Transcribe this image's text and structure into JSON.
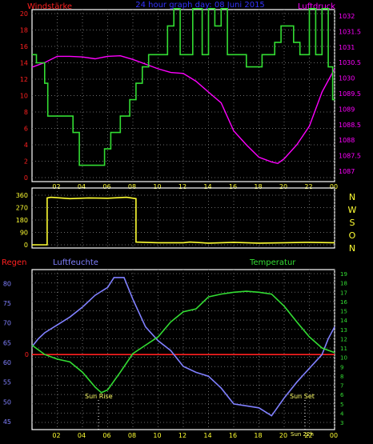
{
  "colors": {
    "background": "#000000",
    "panel_border": "#ffffff",
    "grid": "#6a6a6a",
    "windstaerke": "#ff2020",
    "luftdruck": "#ff00ff",
    "wind_speed_line": "#33dd33",
    "wind_dir_line": "#ffff33",
    "nwson": "#ffff33",
    "regen": "#ff2020",
    "luftfeuchte": "#8080ff",
    "temperatur": "#33dd33",
    "date_title": "#3333ff",
    "time_labels": "#ffff33",
    "sun_labels": "#ffff66",
    "zero_line": "#ff2020"
  },
  "header": {
    "left_label": "Windstärke",
    "center_label": "24 hour graph day: 08 Juni 2015",
    "right_label": "Luftdruck"
  },
  "direction_letters": [
    "N",
    "W",
    "S",
    "O",
    "N"
  ],
  "bottom_labels": {
    "regen": "Regen",
    "luftfeuchte": "Luftfeuchte",
    "temperatur": "Temperatur"
  },
  "sun_labels": {
    "rise": "Sun Rise",
    "set": "Sun Set",
    "now": "Sun 22h"
  },
  "chart_data": [
    {
      "type": "line",
      "name": "wind-pressure",
      "x_ticks": [
        "02",
        "04",
        "06",
        "08",
        "10",
        "12",
        "14",
        "16",
        "18",
        "20",
        "22",
        "00"
      ],
      "y_left_ticks": [
        "0",
        "2",
        "4",
        "6",
        "8",
        "10",
        "12",
        "14",
        "16",
        "18",
        "20"
      ],
      "y_right_ticks": [
        "1087",
        "1087.5",
        "1088",
        "1088.5",
        "1089",
        "1089.5",
        "1030",
        "1030.5",
        "1031",
        "1031.5",
        "1032"
      ],
      "y_left_range": [
        0,
        20
      ],
      "y_right_range": [
        1086.5,
        1032
      ],
      "series": [
        {
          "name": "Windstärke",
          "axis": "left",
          "points": [
            [
              0,
              15
            ],
            [
              0.35,
              15
            ],
            [
              0.35,
              14
            ],
            [
              1,
              14
            ],
            [
              1,
              11.5
            ],
            [
              1.25,
              11.5
            ],
            [
              1.25,
              7.5
            ],
            [
              3.25,
              7.5
            ],
            [
              3.25,
              5.5
            ],
            [
              3.75,
              5.5
            ],
            [
              3.75,
              1.5
            ],
            [
              5.75,
              1.5
            ],
            [
              5.75,
              3.5
            ],
            [
              6.25,
              3.5
            ],
            [
              6.25,
              5.5
            ],
            [
              7,
              5.5
            ],
            [
              7,
              7.5
            ],
            [
              7.75,
              7.5
            ],
            [
              7.75,
              9.5
            ],
            [
              8.25,
              9.5
            ],
            [
              8.25,
              11.5
            ],
            [
              8.75,
              11.5
            ],
            [
              8.75,
              13.5
            ],
            [
              9.25,
              13.5
            ],
            [
              9.25,
              15
            ],
            [
              10.75,
              15
            ],
            [
              10.75,
              18.5
            ],
            [
              11.25,
              18.5
            ],
            [
              11.25,
              21
            ],
            [
              11.75,
              21
            ],
            [
              11.75,
              15
            ],
            [
              12.75,
              15
            ],
            [
              12.75,
              21
            ],
            [
              13.5,
              21
            ],
            [
              13.5,
              15
            ],
            [
              14,
              15
            ],
            [
              14,
              21
            ],
            [
              14.5,
              21
            ],
            [
              14.5,
              18.5
            ],
            [
              15,
              18.5
            ],
            [
              15,
              21
            ],
            [
              15.5,
              21
            ],
            [
              15.5,
              15
            ],
            [
              17,
              15
            ],
            [
              17,
              13.5
            ],
            [
              18.25,
              13.5
            ],
            [
              18.25,
              15
            ],
            [
              19.25,
              15
            ],
            [
              19.25,
              16.5
            ],
            [
              19.75,
              16.5
            ],
            [
              19.75,
              18.5
            ],
            [
              20.75,
              18.5
            ],
            [
              20.75,
              16.5
            ],
            [
              21.25,
              16.5
            ],
            [
              21.25,
              15
            ],
            [
              22,
              15
            ],
            [
              22,
              21
            ],
            [
              22.5,
              21
            ],
            [
              22.5,
              15
            ],
            [
              23,
              15
            ],
            [
              23,
              21
            ],
            [
              23.5,
              21
            ],
            [
              23.5,
              13.5
            ],
            [
              23.85,
              13.5
            ],
            [
              23.85,
              9.5
            ],
            [
              24,
              9.5
            ]
          ]
        },
        {
          "name": "Luftdruck",
          "axis": "right",
          "points": [
            [
              0,
              1030.35
            ],
            [
              1,
              1030.5
            ],
            [
              2,
              1030.7
            ],
            [
              3,
              1030.7
            ],
            [
              4,
              1030.68
            ],
            [
              5,
              1030.62
            ],
            [
              6,
              1030.7
            ],
            [
              7,
              1030.72
            ],
            [
              8,
              1030.6
            ],
            [
              9,
              1030.45
            ],
            [
              10,
              1030.3
            ],
            [
              11,
              1030.18
            ],
            [
              12,
              1030.15
            ],
            [
              13,
              1029.9
            ],
            [
              14,
              1029.55
            ],
            [
              15,
              1029.2
            ],
            [
              16,
              1028.8
            ],
            [
              17,
              1028.35
            ],
            [
              18,
              1027.95
            ],
            [
              19,
              1027.8
            ],
            [
              19.5,
              1027.75
            ],
            [
              20,
              1027.9
            ],
            [
              21,
              1028.35
            ],
            [
              22,
              1028.95
            ],
            [
              23,
              1029.55
            ],
            [
              24,
              1030.3
            ]
          ]
        }
      ]
    },
    {
      "type": "line",
      "name": "wind-direction",
      "y_ticks": [
        "0",
        "90",
        "180",
        "270",
        "360"
      ],
      "y_range": [
        0,
        360
      ],
      "series": [
        {
          "name": "Windrichtung",
          "points": [
            [
              0,
              0
            ],
            [
              1.2,
              0
            ],
            [
              1.2,
              340
            ],
            [
              1.5,
              345
            ],
            [
              3,
              335
            ],
            [
              4.5,
              340
            ],
            [
              6,
              338
            ],
            [
              7.5,
              345
            ],
            [
              8.25,
              335
            ],
            [
              8.25,
              20
            ],
            [
              10,
              15
            ],
            [
              12,
              15
            ],
            [
              12.5,
              20
            ],
            [
              14,
              12
            ],
            [
              16,
              18
            ],
            [
              18,
              12
            ],
            [
              20,
              15
            ],
            [
              22,
              18
            ],
            [
              24,
              15
            ]
          ]
        }
      ]
    },
    {
      "type": "line",
      "name": "humidity-temperature",
      "y_left_ticks": [
        "45",
        "50",
        "55",
        "60",
        "65",
        "70",
        "75",
        "80"
      ],
      "y_left_range": [
        44,
        82.5
      ],
      "y_right_ticks": [
        "3",
        "4",
        "5",
        "6",
        "7",
        "8",
        "9",
        "10",
        "11",
        "12",
        "13",
        "14",
        "15",
        "16",
        "17",
        "18",
        "19"
      ],
      "y_right_range": [
        3,
        19
      ],
      "regen_tick": "0",
      "series": [
        {
          "name": "Luftfeuchte",
          "axis": "left",
          "points": [
            [
              0,
              64
            ],
            [
              0.5,
              66
            ],
            [
              1,
              67.5
            ],
            [
              2,
              69.5
            ],
            [
              3,
              71.5
            ],
            [
              4,
              74
            ],
            [
              5,
              77
            ],
            [
              6,
              79
            ],
            [
              6.5,
              81.5
            ],
            [
              7.3,
              81.5
            ],
            [
              8,
              76
            ],
            [
              9,
              69
            ],
            [
              10,
              65.5
            ],
            [
              11,
              63
            ],
            [
              12,
              59
            ],
            [
              13,
              57.5
            ],
            [
              14,
              56.5
            ],
            [
              15,
              53.5
            ],
            [
              16,
              49.5
            ],
            [
              17,
              49
            ],
            [
              18,
              48.5
            ],
            [
              19,
              46.5
            ],
            [
              20,
              51
            ],
            [
              21,
              55
            ],
            [
              22,
              58.5
            ],
            [
              23,
              62
            ],
            [
              23.5,
              66
            ],
            [
              24,
              69
            ]
          ]
        },
        {
          "name": "Temperatur",
          "axis": "right",
          "points": [
            [
              0,
              11.3
            ],
            [
              1,
              10.3
            ],
            [
              2,
              9.8
            ],
            [
              3,
              9.5
            ],
            [
              4,
              8.4
            ],
            [
              5,
              6.8
            ],
            [
              5.5,
              6.2
            ],
            [
              6,
              6.5
            ],
            [
              7,
              8.4
            ],
            [
              8,
              10.4
            ],
            [
              9,
              11.3
            ],
            [
              10,
              12.2
            ],
            [
              11,
              13.8
            ],
            [
              12,
              14.9
            ],
            [
              13,
              15.2
            ],
            [
              14,
              16.5
            ],
            [
              15,
              16.8
            ],
            [
              16,
              17
            ],
            [
              17,
              17.1
            ],
            [
              18,
              17
            ],
            [
              19,
              16.8
            ],
            [
              20,
              15.5
            ],
            [
              21,
              13.8
            ],
            [
              22,
              12.2
            ],
            [
              23,
              11
            ],
            [
              24,
              10.5
            ]
          ]
        },
        {
          "name": "Regen",
          "axis": "regen",
          "points": [
            [
              0,
              0
            ],
            [
              24,
              0
            ]
          ]
        }
      ]
    }
  ]
}
